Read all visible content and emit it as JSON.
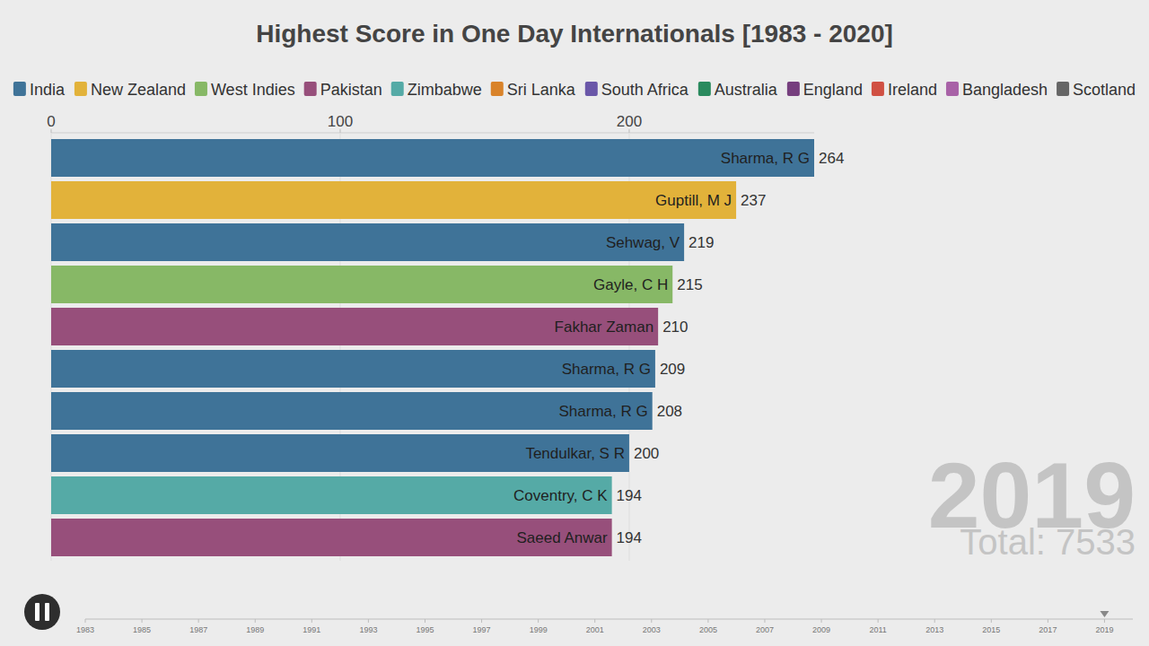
{
  "chart_data": {
    "type": "bar",
    "orientation": "horizontal",
    "title": "Highest Score in One Day Internationals [1983 - 2020]",
    "categories": [
      "Sharma, R G",
      "Guptill, M J",
      "Sehwag, V",
      "Gayle, C H",
      "Fakhar Zaman",
      "Sharma, R G",
      "Sharma, R G",
      "Tendulkar, S R",
      "Coventry, C K",
      "Saeed Anwar"
    ],
    "values": [
      264,
      237,
      219,
      215,
      210,
      209,
      208,
      200,
      194,
      194
    ],
    "colors": [
      "#3f7398",
      "#e2b23a",
      "#3f7398",
      "#87b866",
      "#974f7b",
      "#3f7398",
      "#3f7398",
      "#3f7398",
      "#55aaa6",
      "#974f7b"
    ],
    "xlim": [
      0,
      264
    ],
    "xticks": [
      0,
      100,
      200
    ],
    "grid": true,
    "data_labels": true,
    "legend": "top",
    "legend_items": [
      {
        "name": "India",
        "color": "#3f7398"
      },
      {
        "name": "New Zealand",
        "color": "#e2b23a"
      },
      {
        "name": "West Indies",
        "color": "#87b866"
      },
      {
        "name": "Pakistan",
        "color": "#974f7b"
      },
      {
        "name": "Zimbabwe",
        "color": "#55aaa6"
      },
      {
        "name": "Sri Lanka",
        "color": "#d9832a"
      },
      {
        "name": "South Africa",
        "color": "#6a57a8"
      },
      {
        "name": "Australia",
        "color": "#2a8a5e"
      },
      {
        "name": "England",
        "color": "#763f7e"
      },
      {
        "name": "Ireland",
        "color": "#d05043"
      },
      {
        "name": "Bangladesh",
        "color": "#a862a7"
      },
      {
        "name": "Scotland",
        "color": "#666666"
      }
    ],
    "annotations": [
      "2019",
      "Total: 7533"
    ],
    "timeline": {
      "xlim": [
        1983,
        2020
      ],
      "xticks": [
        1983,
        1985,
        1987,
        1989,
        1991,
        1993,
        1995,
        1997,
        1999,
        2001,
        2003,
        2005,
        2007,
        2009,
        2011,
        2013,
        2015,
        2017,
        2019
      ],
      "value": 2019
    }
  }
}
